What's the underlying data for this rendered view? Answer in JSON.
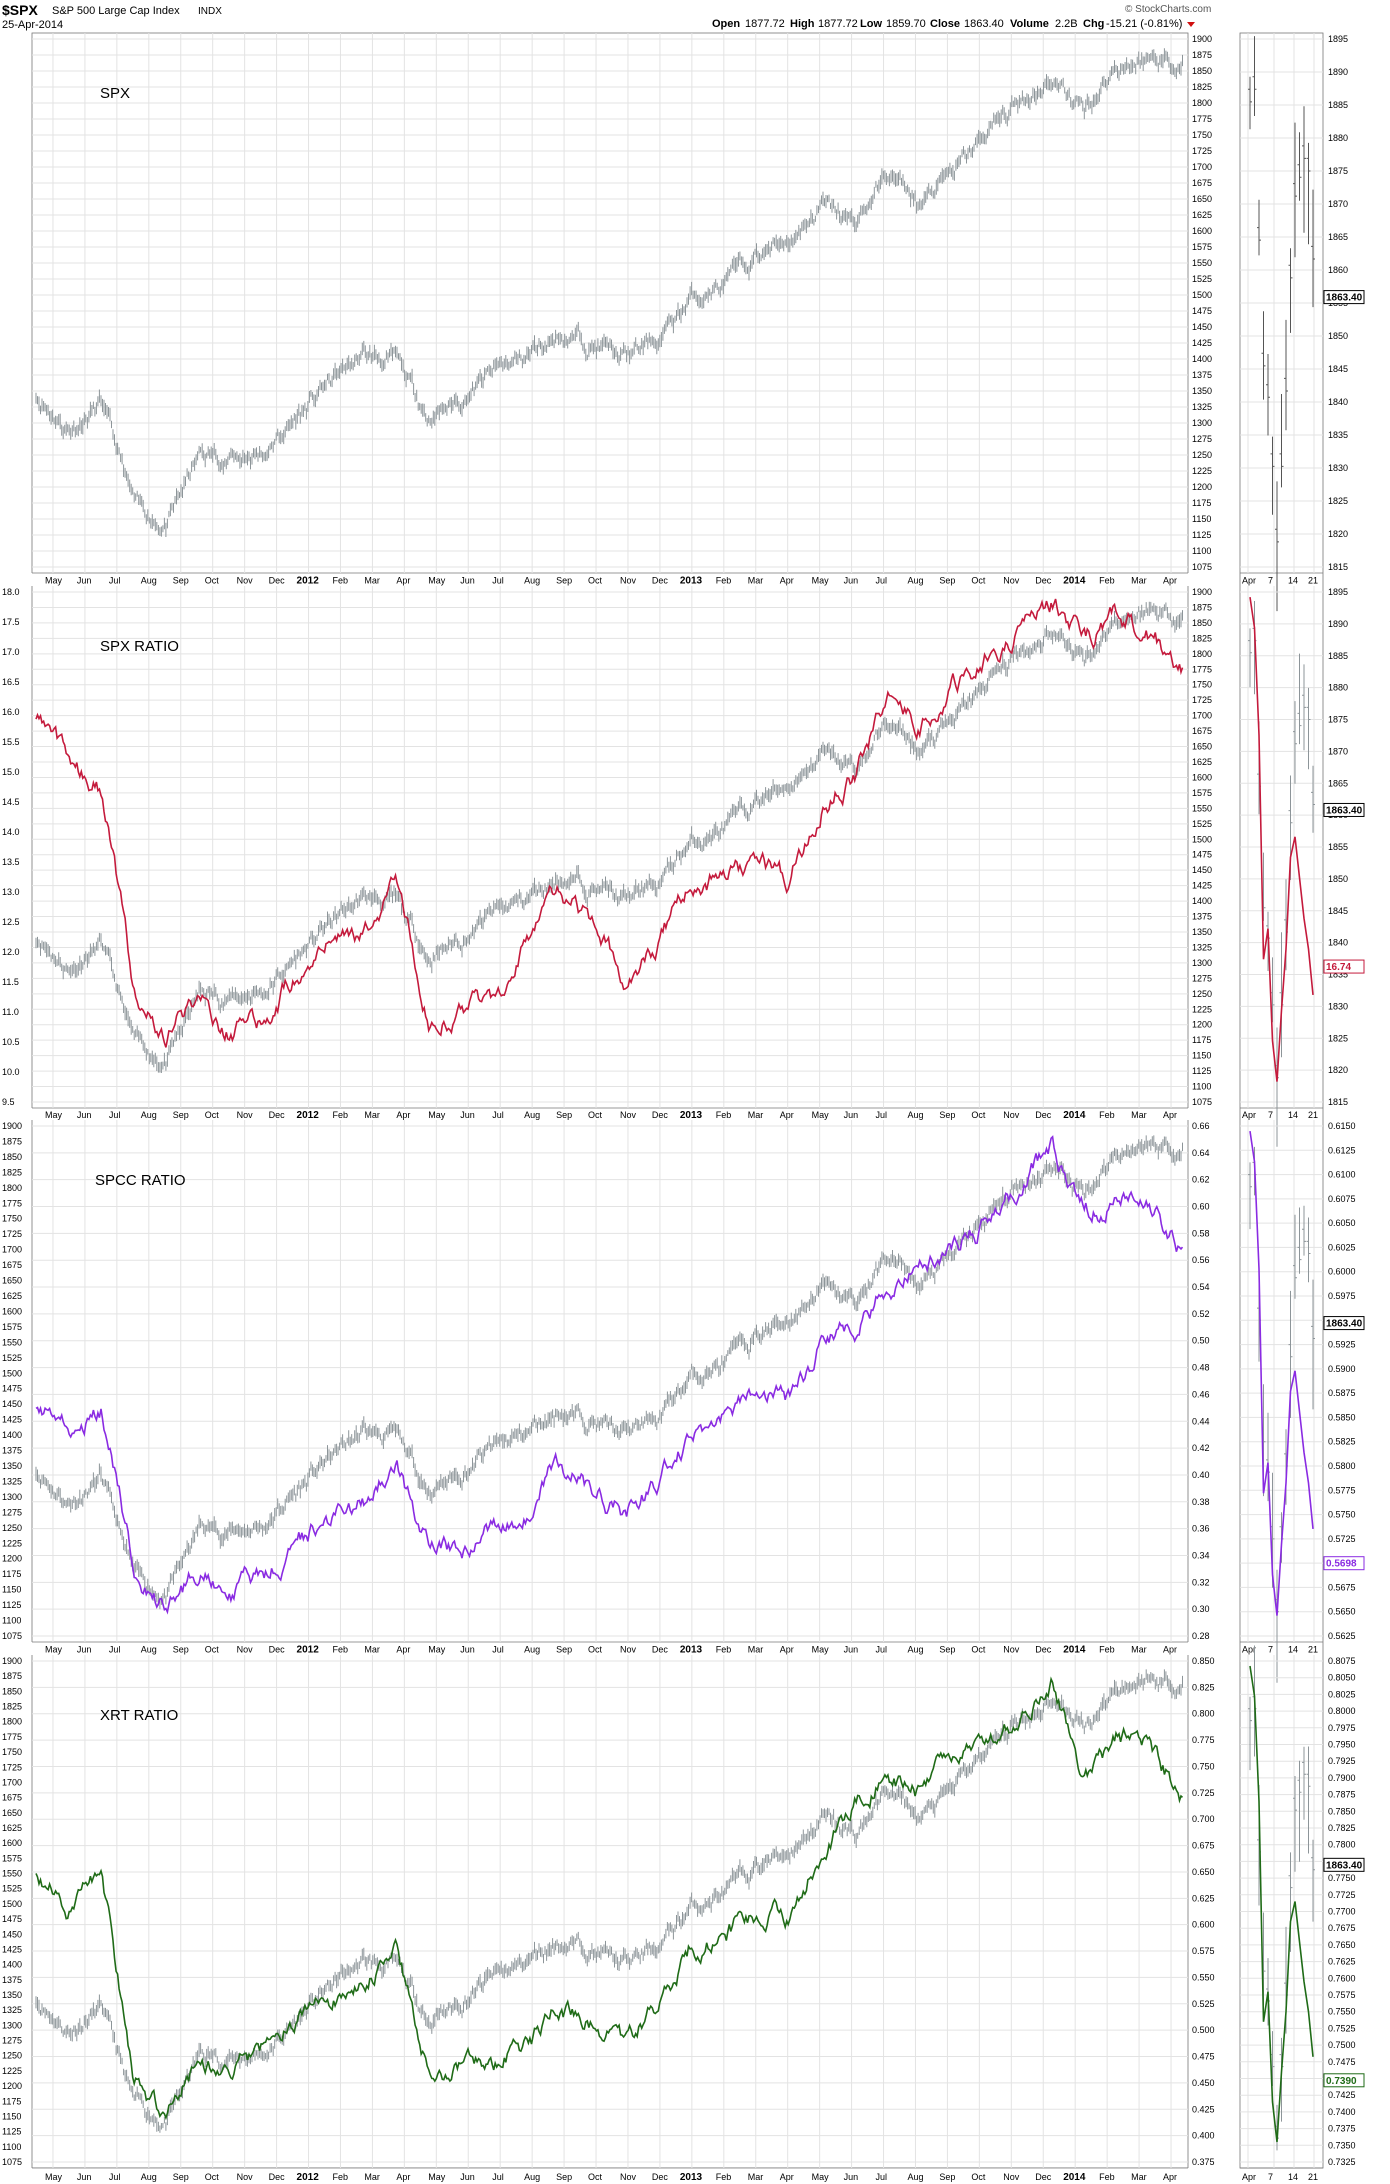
{
  "header": {
    "symbol": "$SPX",
    "description": "S&P 500 Large Cap Index",
    "exchange": "INDX",
    "date": "25-Apr-2014",
    "open_label": "Open",
    "open": "1877.72",
    "high_label": "High",
    "high": "1877.72",
    "low_label": "Low",
    "low": "1859.70",
    "close_label": "Close",
    "close": "1863.40",
    "volume_label": "Volume",
    "volume": "2.2B",
    "chg_label": "Chg",
    "chg": "-15.21 (-0.81%)",
    "watermark": "© StockCharts.com"
  },
  "x_axis": {
    "months": [
      "May",
      "Jun",
      "Jul",
      "Aug",
      "Sep",
      "Oct",
      "Nov",
      "Dec",
      "2012",
      "Feb",
      "Mar",
      "Apr",
      "May",
      "Jun",
      "Jul",
      "Aug",
      "Sep",
      "Oct",
      "Nov",
      "Dec",
      "2013",
      "Feb",
      "Mar",
      "Apr",
      "May",
      "Jun",
      "Jul",
      "Aug",
      "Sep",
      "Oct",
      "Nov",
      "Dec",
      "2014",
      "Feb",
      "Mar",
      "Apr"
    ],
    "bold": [
      "2012",
      "2013",
      "2014"
    ],
    "zoom_ticks": [
      "Apr",
      "7",
      "14",
      "21"
    ]
  },
  "colors": {
    "spx": "#8d9599",
    "spx_ratio": "#c41a3c",
    "spcc_ratio": "#8a2be2",
    "xrt_ratio": "#1f6b17",
    "grid": "#e3e3e3"
  },
  "panels": [
    {
      "title": "SPX",
      "left_ticks": [],
      "right_ticks": [
        "1900",
        "1875",
        "1850",
        "1825",
        "1800",
        "1775",
        "1750",
        "1725",
        "1700",
        "1675",
        "1650",
        "1625",
        "1600",
        "1575",
        "1550",
        "1525",
        "1500",
        "1475",
        "1450",
        "1425",
        "1400",
        "1375",
        "1350",
        "1325",
        "1300",
        "1275",
        "1250",
        "1225",
        "1200",
        "1175",
        "1150",
        "1125",
        "1100",
        "1075"
      ],
      "zoom_ticks": [
        "1895",
        "1890",
        "1885",
        "1880",
        "1875",
        "1870",
        "1865",
        "1860",
        "1855",
        "1850",
        "1845",
        "1840",
        "1835",
        "1830",
        "1825",
        "1820",
        "1815"
      ],
      "zoom_labels": [
        {
          "text": "1863.40",
          "color": "#000000"
        }
      ]
    },
    {
      "title": "SPX RATIO",
      "left_ticks": [
        "18.0",
        "17.5",
        "17.0",
        "16.5",
        "16.0",
        "15.5",
        "15.0",
        "14.5",
        "14.0",
        "13.5",
        "13.0",
        "12.5",
        "12.0",
        "11.5",
        "11.0",
        "10.5",
        "10.0",
        "9.5"
      ],
      "right_ticks": [
        "1900",
        "1875",
        "1850",
        "1825",
        "1800",
        "1775",
        "1750",
        "1725",
        "1700",
        "1675",
        "1650",
        "1625",
        "1600",
        "1575",
        "1550",
        "1525",
        "1500",
        "1475",
        "1450",
        "1425",
        "1400",
        "1375",
        "1350",
        "1325",
        "1300",
        "1275",
        "1250",
        "1225",
        "1200",
        "1175",
        "1150",
        "1125",
        "1100",
        "1075"
      ],
      "zoom_ticks": [
        "1895",
        "1890",
        "1885",
        "1880",
        "1875",
        "1870",
        "1865",
        "1860",
        "1855",
        "1850",
        "1845",
        "1840",
        "1835",
        "1830",
        "1825",
        "1820",
        "1815"
      ],
      "zoom_labels": [
        {
          "text": "1863.40",
          "color": "#000000"
        },
        {
          "text": "16.74",
          "color": "#c41a3c"
        }
      ]
    },
    {
      "title": "SPCC RATIO",
      "left_ticks": [
        "1900",
        "1875",
        "1850",
        "1825",
        "1800",
        "1775",
        "1750",
        "1725",
        "1700",
        "1675",
        "1650",
        "1625",
        "1600",
        "1575",
        "1550",
        "1525",
        "1500",
        "1475",
        "1450",
        "1425",
        "1400",
        "1375",
        "1350",
        "1325",
        "1300",
        "1275",
        "1250",
        "1225",
        "1200",
        "1175",
        "1150",
        "1125",
        "1100",
        "1075"
      ],
      "right_ticks": [
        "0.66",
        "0.64",
        "0.62",
        "0.60",
        "0.58",
        "0.56",
        "0.54",
        "0.52",
        "0.50",
        "0.48",
        "0.46",
        "0.44",
        "0.42",
        "0.40",
        "0.38",
        "0.36",
        "0.34",
        "0.32",
        "0.30",
        "0.28"
      ],
      "zoom_ticks": [
        "0.6150",
        "0.6125",
        "0.6100",
        "0.6075",
        "0.6050",
        "0.6025",
        "0.6000",
        "0.5975",
        "0.5950",
        "0.5925",
        "0.5900",
        "0.5875",
        "0.5850",
        "0.5825",
        "0.5800",
        "0.5775",
        "0.5750",
        "0.5725",
        "0.5700",
        "0.5675",
        "0.5650",
        "0.5625"
      ],
      "zoom_labels": [
        {
          "text": "1863.40",
          "color": "#000000"
        },
        {
          "text": "0.5698",
          "color": "#8a2be2"
        }
      ]
    },
    {
      "title": "XRT RATIO",
      "left_ticks": [
        "1900",
        "1875",
        "1850",
        "1825",
        "1800",
        "1775",
        "1750",
        "1725",
        "1700",
        "1675",
        "1650",
        "1625",
        "1600",
        "1575",
        "1550",
        "1525",
        "1500",
        "1475",
        "1450",
        "1425",
        "1400",
        "1375",
        "1350",
        "1325",
        "1300",
        "1275",
        "1250",
        "1225",
        "1200",
        "1175",
        "1150",
        "1125",
        "1100",
        "1075"
      ],
      "right_ticks": [
        "0.850",
        "0.825",
        "0.800",
        "0.775",
        "0.750",
        "0.725",
        "0.700",
        "0.675",
        "0.650",
        "0.625",
        "0.600",
        "0.575",
        "0.550",
        "0.525",
        "0.500",
        "0.475",
        "0.450",
        "0.425",
        "0.400",
        "0.375"
      ],
      "zoom_ticks": [
        "0.8075",
        "0.8050",
        "0.8025",
        "0.8000",
        "0.7975",
        "0.7950",
        "0.7925",
        "0.7900",
        "0.7875",
        "0.7850",
        "0.7825",
        "0.7800",
        "0.7775",
        "0.7750",
        "0.7725",
        "0.7700",
        "0.7675",
        "0.7650",
        "0.7625",
        "0.7600",
        "0.7575",
        "0.7550",
        "0.7525",
        "0.7500",
        "0.7475",
        "0.7450",
        "0.7425",
        "0.7400",
        "0.7375",
        "0.7350",
        "0.7325"
      ],
      "zoom_labels": [
        {
          "text": "1863.40",
          "color": "#000000"
        },
        {
          "text": "0.7390",
          "color": "#1f6b17"
        }
      ]
    }
  ],
  "chart_data": {
    "type": "line",
    "x": [
      "2011-05",
      "2011-06",
      "2011-07",
      "2011-08",
      "2011-09",
      "2011-10",
      "2011-11",
      "2011-12",
      "2012-01",
      "2012-02",
      "2012-03",
      "2012-04",
      "2012-05",
      "2012-06",
      "2012-07",
      "2012-08",
      "2012-09",
      "2012-10",
      "2012-11",
      "2012-12",
      "2013-01",
      "2013-02",
      "2013-03",
      "2013-04",
      "2013-05",
      "2013-06",
      "2013-07",
      "2013-08",
      "2013-09",
      "2013-10",
      "2013-11",
      "2013-12",
      "2014-01",
      "2014-02",
      "2014-03",
      "2014-04"
    ],
    "panels": [
      {
        "title": "SPX",
        "ylim": [
          1075,
          1900
        ],
        "series": [
          {
            "values": [
              1345,
              1290,
              1330,
              1170,
              1140,
              1250,
              1245,
              1255,
              1310,
              1365,
              1405,
              1395,
              1310,
              1340,
              1380,
              1405,
              1440,
              1425,
              1400,
              1430,
              1495,
              1515,
              1560,
              1590,
              1640,
              1610,
              1690,
              1640,
              1690,
              1750,
              1800,
              1840,
              1790,
              1860,
              1870,
              1863.4
            ]
          }
        ]
      },
      {
        "title": "SPX RATIO",
        "ylim": [
          9.5,
          18.0
        ],
        "series": [
          {
            "values": [
              16.0,
              15.2,
              14.7,
              11.4,
              10.6,
              11.2,
              10.6,
              10.9,
              11.7,
              12.3,
              12.3,
              13.2,
              10.9,
              11.0,
              11.2,
              12.2,
              13.1,
              12.4,
              11.6,
              12.2,
              13.0,
              13.3,
              13.4,
              13.2,
              14.5,
              14.9,
              16.2,
              15.8,
              16.4,
              16.9,
              17.3,
              17.8,
              17.2,
              17.6,
              17.3,
              16.74
            ]
          }
        ]
      },
      {
        "title": "SPCC RATIO",
        "ylim": [
          0.28,
          0.66
        ],
        "series": [
          {
            "values": [
              0.455,
              0.43,
              0.45,
              0.33,
              0.295,
              0.33,
              0.315,
              0.325,
              0.35,
              0.37,
              0.38,
              0.41,
              0.345,
              0.34,
              0.36,
              0.375,
              0.41,
              0.39,
              0.37,
              0.395,
              0.43,
              0.44,
              0.46,
              0.455,
              0.5,
              0.51,
              0.54,
              0.555,
              0.575,
              0.585,
              0.615,
              0.645,
              0.595,
              0.605,
              0.6,
              0.5698
            ]
          }
        ]
      },
      {
        "title": "XRT RATIO",
        "ylim": [
          0.375,
          0.875
        ],
        "series": [
          {
            "values": [
              0.67,
              0.63,
              0.66,
              0.455,
              0.42,
              0.475,
              0.47,
              0.49,
              0.52,
              0.535,
              0.555,
              0.58,
              0.47,
              0.465,
              0.475,
              0.49,
              0.53,
              0.515,
              0.49,
              0.53,
              0.59,
              0.6,
              0.625,
              0.62,
              0.69,
              0.73,
              0.76,
              0.74,
              0.78,
              0.79,
              0.82,
              0.86,
              0.75,
              0.8,
              0.79,
              0.739
            ]
          }
        ]
      }
    ]
  }
}
